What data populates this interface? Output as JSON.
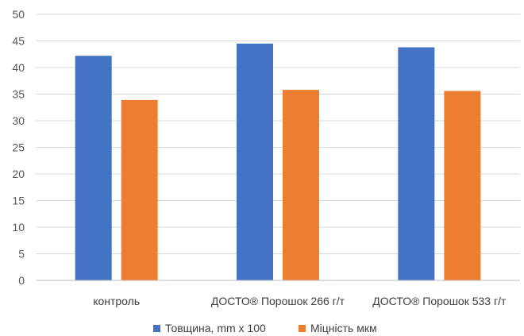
{
  "chart_data": {
    "type": "bar",
    "categories": [
      "контроль",
      "ДОСТО® Порошок 266 г/т",
      "ДОСТО® Порошок 533 г/т"
    ],
    "series": [
      {
        "name": "Товщина, mm x 100",
        "values": [
          42.2,
          44.5,
          43.8
        ],
        "color": "#4472C4"
      },
      {
        "name": "Міцність мкм",
        "values": [
          33.9,
          35.8,
          35.6
        ],
        "color": "#ED7D31"
      }
    ],
    "yticks": [
      0,
      5,
      10,
      15,
      20,
      25,
      30,
      35,
      40,
      45,
      50
    ],
    "ylim": [
      0,
      50
    ],
    "grid": true,
    "legend_position": "bottom"
  }
}
